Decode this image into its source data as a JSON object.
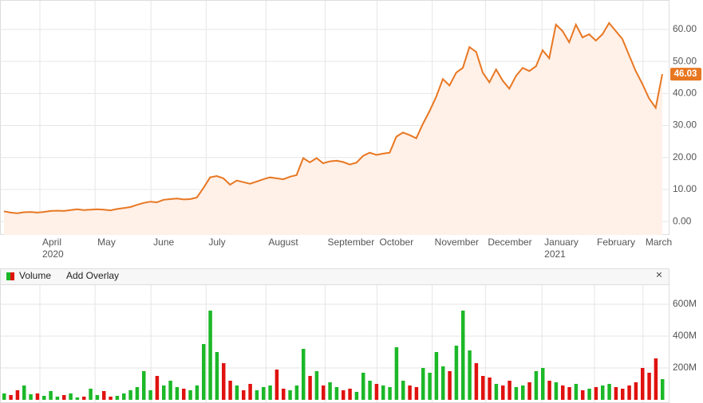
{
  "chart_data": [
    {
      "type": "line",
      "series": [
        {
          "name": "Price",
          "color": "#e87722",
          "fill": "#fff0e8",
          "values": [
            3.2,
            2.8,
            2.6,
            2.9,
            3.0,
            2.8,
            3.0,
            3.3,
            3.4,
            3.3,
            3.6,
            3.8,
            3.6,
            3.7,
            3.8,
            3.7,
            3.5,
            3.9,
            4.2,
            4.5,
            5.2,
            5.8,
            6.2,
            6.0,
            6.8,
            7.0,
            7.2,
            6.9,
            7.0,
            7.5,
            10.5,
            13.8,
            14.2,
            13.5,
            11.5,
            12.8,
            12.3,
            11.8,
            12.5,
            13.2,
            13.8,
            13.5,
            13.2,
            14.0,
            14.5,
            19.8,
            18.5,
            19.8,
            18.2,
            18.8,
            19.0,
            18.6,
            17.8,
            18.4,
            20.5,
            21.5,
            20.8,
            21.2,
            21.5,
            26.5,
            27.8,
            27.0,
            26.0,
            30.5,
            34.5,
            39.0,
            44.5,
            42.5,
            46.5,
            48.0,
            54.5,
            53.0,
            46.5,
            43.5,
            47.5,
            44.0,
            41.5,
            45.5,
            48.0,
            47.0,
            48.5,
            53.5,
            51.0,
            61.5,
            59.5,
            56.0,
            61.5,
            57.5,
            58.5,
            56.5,
            58.5,
            62.0,
            59.5,
            57.0,
            52.0,
            47.0,
            43.0,
            38.5,
            35.5,
            46.03
          ]
        }
      ],
      "last_value_label": "46.03",
      "xlim": [
        0,
        99.6
      ],
      "xticks": [
        {
          "value": 5.4,
          "label": "April"
        },
        {
          "value": 13.7,
          "label": "May"
        },
        {
          "value": 22.1,
          "label": "June"
        },
        {
          "value": 30.4,
          "label": "July"
        },
        {
          "value": 39.4,
          "label": "August"
        },
        {
          "value": 48.3,
          "label": "September"
        },
        {
          "value": 56.1,
          "label": "October"
        },
        {
          "value": 64.4,
          "label": "November"
        },
        {
          "value": 72.4,
          "label": "December"
        },
        {
          "value": 80.9,
          "label": "January"
        },
        {
          "value": 88.8,
          "label": "February"
        },
        {
          "value": 96.1,
          "label": "March"
        }
      ],
      "year_labels": [
        {
          "value": 5.4,
          "label": "2020"
        },
        {
          "value": 80.9,
          "label": "2021"
        }
      ],
      "ylim": [
        -4.2,
        69.2
      ],
      "yticks": [
        {
          "value": 0,
          "label": "0.00"
        },
        {
          "value": 10,
          "label": "10.00"
        },
        {
          "value": 20,
          "label": "20.00"
        },
        {
          "value": 30,
          "label": "30.00"
        },
        {
          "value": 40,
          "label": "40.00"
        },
        {
          "value": 50,
          "label": "50.00"
        },
        {
          "value": 60,
          "label": "60.00"
        }
      ],
      "grid": true
    },
    {
      "type": "bar",
      "legend": "Volume",
      "overlay_button": "Add Overlay",
      "close_button": "×",
      "up_color": "#1cb828",
      "down_color": "#e0120f",
      "series": [
        {
          "name": "Volume",
          "values": [
            40,
            30,
            60,
            90,
            35,
            40,
            25,
            55,
            20,
            30,
            40,
            15,
            20,
            70,
            30,
            55,
            20,
            25,
            40,
            60,
            80,
            180,
            60,
            150,
            90,
            120,
            80,
            70,
            60,
            90,
            350,
            560,
            300,
            230,
            120,
            90,
            60,
            100,
            60,
            80,
            90,
            190,
            70,
            60,
            90,
            320,
            150,
            180,
            90,
            110,
            80,
            60,
            70,
            50,
            170,
            120,
            100,
            90,
            80,
            330,
            120,
            90,
            80,
            200,
            170,
            300,
            210,
            180,
            340,
            560,
            310,
            230,
            150,
            140,
            100,
            90,
            120,
            80,
            90,
            110,
            180,
            200,
            120,
            110,
            90,
            80,
            100,
            60,
            70,
            80,
            90,
            100,
            80,
            70,
            90,
            110,
            200,
            170,
            260,
            130
          ]
        }
      ],
      "ylim": [
        -15,
        720
      ],
      "yticks": [
        {
          "value": 200,
          "label": "200M"
        },
        {
          "value": 400,
          "label": "400M"
        },
        {
          "value": 600,
          "label": "600M"
        }
      ],
      "grid": true
    }
  ]
}
